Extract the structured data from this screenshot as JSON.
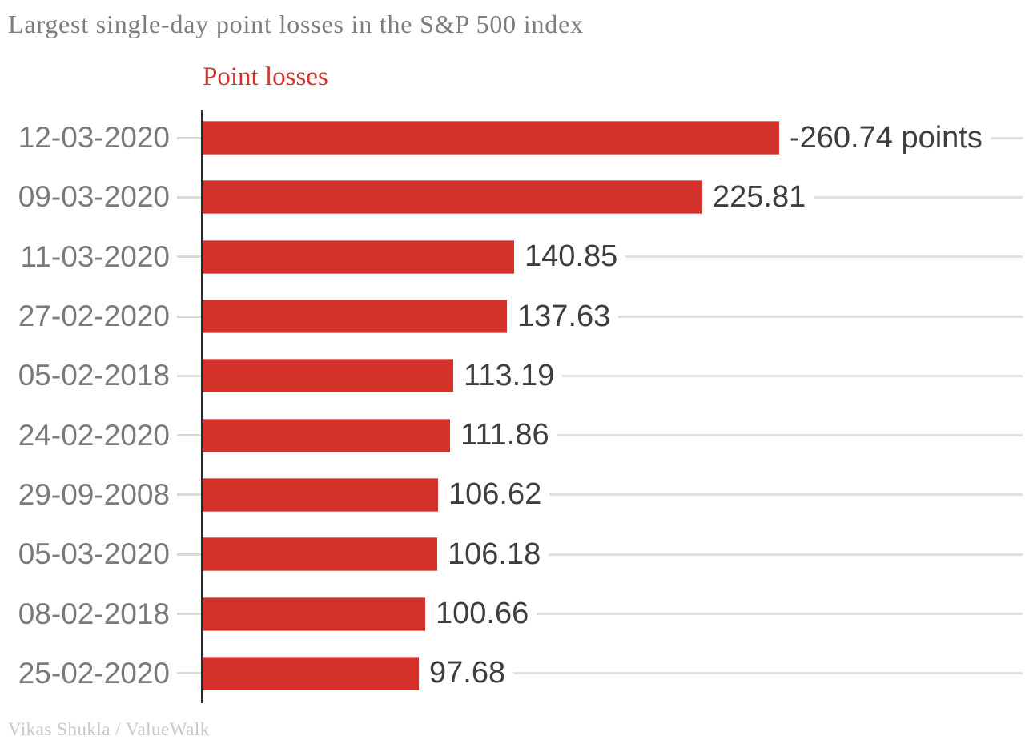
{
  "chart_data": {
    "type": "bar",
    "orientation": "horizontal",
    "title": "Largest single-day point losses in the S&P 500 index",
    "legend": "Point losses",
    "categories": [
      "12-03-2020",
      "09-03-2020",
      "11-03-2020",
      "27-02-2020",
      "05-02-2018",
      "24-02-2020",
      "29-09-2008",
      "05-03-2020",
      "08-02-2018",
      "25-02-2020"
    ],
    "values": [
      260.74,
      225.81,
      140.85,
      137.63,
      113.19,
      111.86,
      106.62,
      106.18,
      100.66,
      97.68
    ],
    "value_labels": [
      "-260.74 points",
      "225.81",
      "140.85",
      "137.63",
      "113.19",
      "111.86",
      "106.62",
      "106.18",
      "100.66",
      "97.68"
    ],
    "xlabel": "",
    "ylabel": "",
    "xlim": [
      0,
      370
    ],
    "grid": false,
    "legend_position": "top-left-of-plot",
    "bar_color": "#d3312a",
    "axis_color": "#2b2b2b",
    "category_label_color": "#7a7a7a",
    "value_label_color": "#3e3e3e",
    "title_color": "#7d7d7d",
    "legend_color": "#d5342b",
    "source": "Vikas Shukla / ValueWalk"
  }
}
